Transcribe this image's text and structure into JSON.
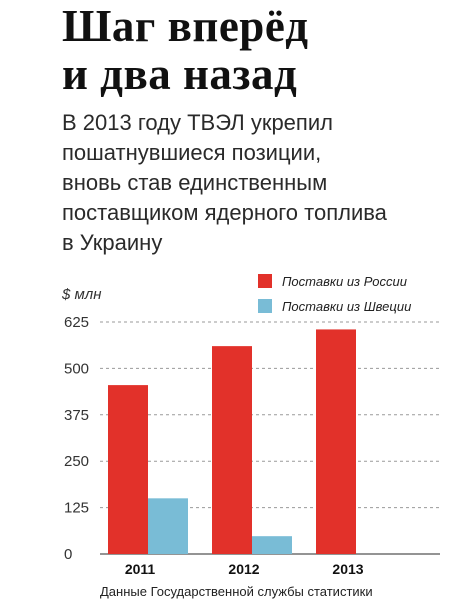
{
  "header": {
    "title_lines": [
      "Шаг вперёд",
      "и два назад"
    ],
    "subtitle_lines": [
      "В 2013 году ТВЭЛ укрепил",
      "пошатнувшиеся позиции,",
      "вновь став единственным",
      "поставщиком ядерного топлива",
      "в Украину"
    ]
  },
  "chart_data": {
    "type": "bar",
    "title": "Шаг вперёд и два назад",
    "subtitle": "В 2013 году ТВЭЛ укрепил пошатнувшиеся позиции, вновь став единственным поставщиком ядерного топлива в Украину",
    "ylabel": "$ млн",
    "xlabel": "",
    "categories": [
      "2011",
      "2012",
      "2013"
    ],
    "series": [
      {
        "name": "Поставки из России",
        "color": "#e2312a",
        "values": [
          455,
          560,
          605
        ]
      },
      {
        "name": "Поставки из Швеции",
        "color": "#79bcd6",
        "values": [
          150,
          48,
          0
        ]
      }
    ],
    "ylim": [
      0,
      625
    ],
    "yticks": [
      "0",
      "125",
      "250",
      "375",
      "500",
      "625"
    ],
    "grid": true,
    "legend": "top-right"
  },
  "source": "Данные Государственной службы статистики"
}
